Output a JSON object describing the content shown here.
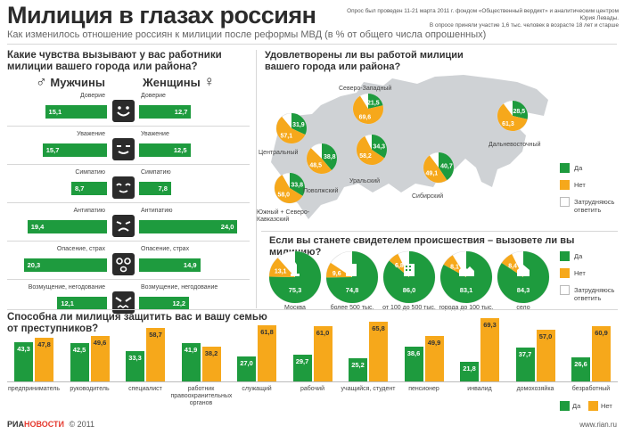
{
  "header": {
    "title": "Милиция в глазах россиян",
    "subtitle": "Как изменилось отношение россиян к милиции после реформы МВД (в % от общего числа опрошенных)",
    "note1": "Опрос был проведен 11-21 марта 2011 г. фондом «Общественный вердикт» и аналитическим центром Юрия Левады.",
    "note2": "В опросе приняли участие 1,6 тыс. человек в возрасте 18 лет и старше"
  },
  "colors": {
    "green": "#1e9b3e",
    "orange": "#f6a81b",
    "dark": "#2b2b2b",
    "map": "#cfd2d5"
  },
  "feelings": {
    "question": "Какие чувства вызывают у вас работники милиции вашего города или района?",
    "men_label": "Мужчины",
    "women_label": "Женщины",
    "men_symbol": "♂",
    "women_symbol": "♀"
  },
  "map_section": {
    "question": "Удовлетворены ли вы работой милиции вашего города или района?",
    "legend": {
      "yes": "Да",
      "no": "Нет",
      "hard": "Затрудняюсь ответить"
    }
  },
  "witness": {
    "question": "Если вы станете свидетелем происшествия – вызовете ли вы милицию?",
    "legend": {
      "yes": "Да",
      "no": "Нет",
      "hard": "Затрудняюсь ответить"
    }
  },
  "protect": {
    "question": "Способна ли милиция защитить вас и вашу семью от преступников?",
    "legend": {
      "yes": "Да",
      "no": "Нет"
    }
  },
  "footer": {
    "logo_ria": "РИА",
    "logo_news": "НОВОСТИ",
    "copyright": "© 2011",
    "site": "www.rian.ru"
  },
  "chart_data": [
    {
      "type": "bar",
      "title": "Какие чувства вызывают у вас работники милиции вашего города или района?",
      "categories": [
        "Доверие",
        "Уважение",
        "Симпатию",
        "Антипатию",
        "Опасение, страх",
        "Возмущение, негодование"
      ],
      "icons": [
        "smile-face-icon",
        "neutral-smile-face-icon",
        "calm-face-icon",
        "frown-face-icon",
        "scared-face-icon",
        "angry-face-icon"
      ],
      "series": [
        {
          "name": "Мужчины",
          "values": [
            15.1,
            15.7,
            8.7,
            19.4,
            20.3,
            12.1
          ],
          "labels": [
            "15,1",
            "15,7",
            "8,7",
            "19,4",
            "20,3",
            "12,1"
          ]
        },
        {
          "name": "Женщины",
          "values": [
            12.7,
            12.5,
            7.8,
            24.0,
            14.9,
            12.2
          ],
          "labels": [
            "12,7",
            "12,5",
            "7,8",
            "24,0",
            "14,9",
            "12,2"
          ]
        }
      ]
    },
    {
      "type": "pie",
      "title": "Удовлетворены ли вы работой милиции вашего города или района?",
      "regions": [
        {
          "name": "Северо-Западный",
          "yes": 21.5,
          "no": 69.6,
          "yes_label": "21,5",
          "no_label": "69,6"
        },
        {
          "name": "Центральный",
          "yes": 31.9,
          "no": 57.1,
          "yes_label": "31,9",
          "no_label": "57,1"
        },
        {
          "name": "Поволжский",
          "yes": 38.8,
          "no": 48.5,
          "yes_label": "38,8",
          "no_label": "48,5"
        },
        {
          "name": "Уральский",
          "yes": 34.3,
          "no": 58.2,
          "yes_label": "34,3",
          "no_label": "58,2"
        },
        {
          "name": "Сибирский",
          "yes": 40.7,
          "no": 49.1,
          "yes_label": "40,7",
          "no_label": "49,1"
        },
        {
          "name": "Дальневосточный",
          "yes": 28.5,
          "no": 61.3,
          "yes_label": "28,5",
          "no_label": "61,3"
        },
        {
          "name": "Южный + Северо-Кавказский",
          "yes": 33.8,
          "no": 58.0,
          "yes_label": "33,8",
          "no_label": "58,0"
        }
      ]
    },
    {
      "type": "pie",
      "title": "Если вы станете свидетелем происшествия – вызовете ли вы милицию?",
      "settlements": [
        {
          "name": "Москва",
          "yes": 75.3,
          "no": 13.1,
          "yes_label": "75,3",
          "no_label": "13,1",
          "icon": "monument-icon"
        },
        {
          "name": "более 500 тыс.",
          "yes": 74.8,
          "no": 9.6,
          "yes_label": "74,8",
          "no_label": "9,6",
          "icon": "city-icon"
        },
        {
          "name": "от 100 до 500 тыс.",
          "yes": 86.0,
          "no": 6.8,
          "yes_label": "86,0",
          "no_label": "6,8",
          "icon": "building-icon"
        },
        {
          "name": "города до 100 тыс.",
          "yes": 83.1,
          "no": 8.1,
          "yes_label": "83,1",
          "no_label": "8,1",
          "icon": "houses-icon"
        },
        {
          "name": "село",
          "yes": 84.3,
          "no": 8.4,
          "yes_label": "84,3",
          "no_label": "8,4",
          "icon": "house-icon"
        }
      ]
    },
    {
      "type": "bar",
      "title": "Способна ли милиция защитить вас и вашу семью от преступников?",
      "categories": [
        "предприниматель",
        "руководитель",
        "специалист",
        "работник правоохранительных органов",
        "служащий",
        "рабочий",
        "учащийся, студент",
        "пенсионер",
        "инвалид",
        "домохозяйка",
        "безработный"
      ],
      "series": [
        {
          "name": "Да",
          "values": [
            43.3,
            42.5,
            33.3,
            41.9,
            27.0,
            29.7,
            25.2,
            38.6,
            21.8,
            37.7,
            26.6
          ],
          "labels": [
            "43,3",
            "42,5",
            "33,3",
            "41,9",
            "27,0",
            "29,7",
            "25,2",
            "38,6",
            "21,8",
            "37,7",
            "26,6"
          ]
        },
        {
          "name": "Нет",
          "values": [
            47.8,
            49.6,
            58.7,
            38.2,
            61.8,
            61.0,
            65.8,
            49.9,
            69.3,
            57.0,
            60.9
          ],
          "labels": [
            "47,8",
            "49,6",
            "58,7",
            "38,2",
            "61,8",
            "61,0",
            "65,8",
            "49,9",
            "69,3",
            "57,0",
            "60,9"
          ]
        }
      ]
    }
  ]
}
